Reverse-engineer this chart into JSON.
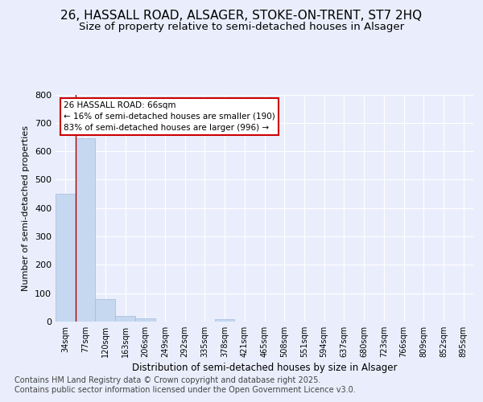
{
  "title_line1": "26, HASSALL ROAD, ALSAGER, STOKE-ON-TRENT, ST7 2HQ",
  "title_line2": "Size of property relative to semi-detached houses in Alsager",
  "xlabel": "Distribution of semi-detached houses by size in Alsager",
  "ylabel": "Number of semi-detached properties",
  "categories": [
    "34sqm",
    "77sqm",
    "120sqm",
    "163sqm",
    "206sqm",
    "249sqm",
    "292sqm",
    "335sqm",
    "378sqm",
    "421sqm",
    "465sqm",
    "508sqm",
    "551sqm",
    "594sqm",
    "637sqm",
    "680sqm",
    "723sqm",
    "766sqm",
    "809sqm",
    "852sqm",
    "895sqm"
  ],
  "values": [
    450,
    645,
    78,
    20,
    10,
    0,
    0,
    0,
    8,
    0,
    0,
    0,
    0,
    0,
    0,
    0,
    0,
    0,
    0,
    0,
    0
  ],
  "bar_color": "#c5d8f0",
  "bar_edge_color": "#a0bbdc",
  "annotation_box_text": "26 HASSALL ROAD: 66sqm\n← 16% of semi-detached houses are smaller (190)\n83% of semi-detached houses are larger (996) →",
  "annotation_box_color": "#ffffff",
  "annotation_box_edge_color": "#cc0000",
  "red_line_x": 0.5,
  "ylim": [
    0,
    800
  ],
  "yticks": [
    0,
    100,
    200,
    300,
    400,
    500,
    600,
    700,
    800
  ],
  "background_color": "#eaeefc",
  "plot_background_color": "#eaeefc",
  "footer_text": "Contains HM Land Registry data © Crown copyright and database right 2025.\nContains public sector information licensed under the Open Government Licence v3.0.",
  "grid_color": "#ffffff",
  "title_fontsize": 11,
  "subtitle_fontsize": 9.5,
  "footer_fontsize": 7.0
}
